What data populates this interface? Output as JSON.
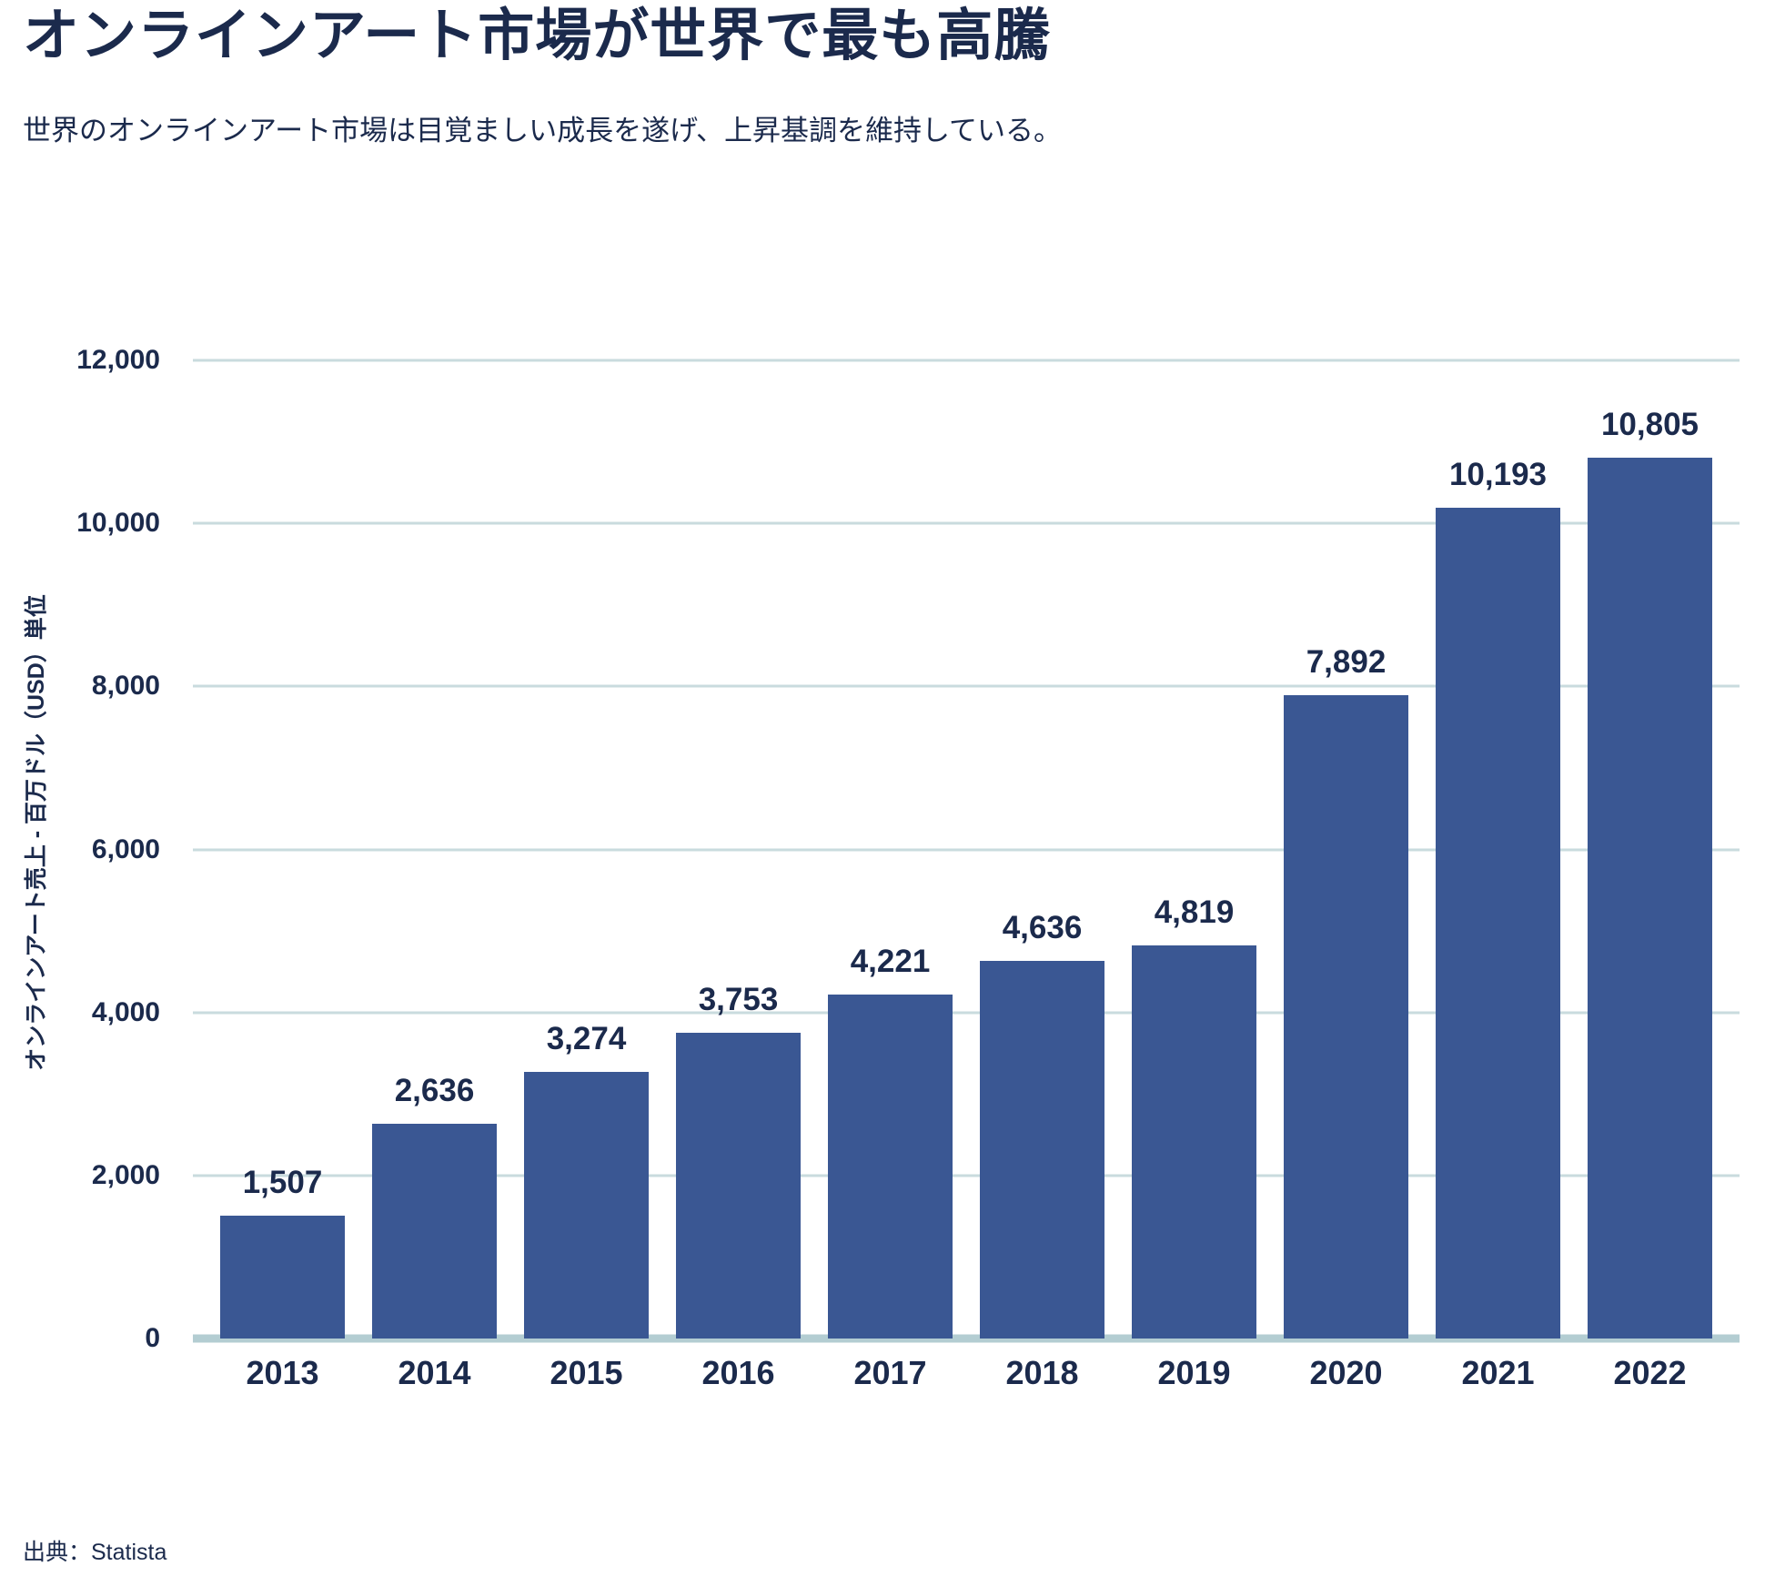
{
  "chart_data": {
    "type": "bar",
    "title": "オンラインアート市場が世界で最も高騰",
    "subtitle": "世界のオンラインアート市場は目覚ましい成長を遂げ、上昇基調を維持している。",
    "ylabel": "オンラインアート売上 - 百万ドル（USD）単位",
    "source": "出典：Statista",
    "categories": [
      "2013",
      "2014",
      "2015",
      "2016",
      "2017",
      "2018",
      "2019",
      "2020",
      "2021",
      "2022"
    ],
    "values": [
      1507,
      2636,
      3274,
      3753,
      4221,
      4636,
      4819,
      7892,
      10193,
      10805
    ],
    "value_labels": [
      "1,507",
      "2,636",
      "3,274",
      "3,753",
      "4,221",
      "4,636",
      "4,819",
      "7,892",
      "10,193",
      "10,805"
    ],
    "xlabel": "",
    "ylim": [
      0,
      12000
    ],
    "yticks": [
      {
        "value": 0,
        "label": "0"
      },
      {
        "value": 2000,
        "label": "2,000"
      },
      {
        "value": 4000,
        "label": "4,000"
      },
      {
        "value": 6000,
        "label": "6,000"
      },
      {
        "value": 8000,
        "label": "8,000"
      },
      {
        "value": 10000,
        "label": "10,000"
      },
      {
        "value": 12000,
        "label": "12,000"
      }
    ],
    "grid": true,
    "legend": "none",
    "colors": {
      "bar": "#3A5793",
      "text": "#1B2A4C",
      "gridline": "#C9DBDE",
      "baseline": "#B3CDD2",
      "background": "#FFFFFF"
    }
  }
}
